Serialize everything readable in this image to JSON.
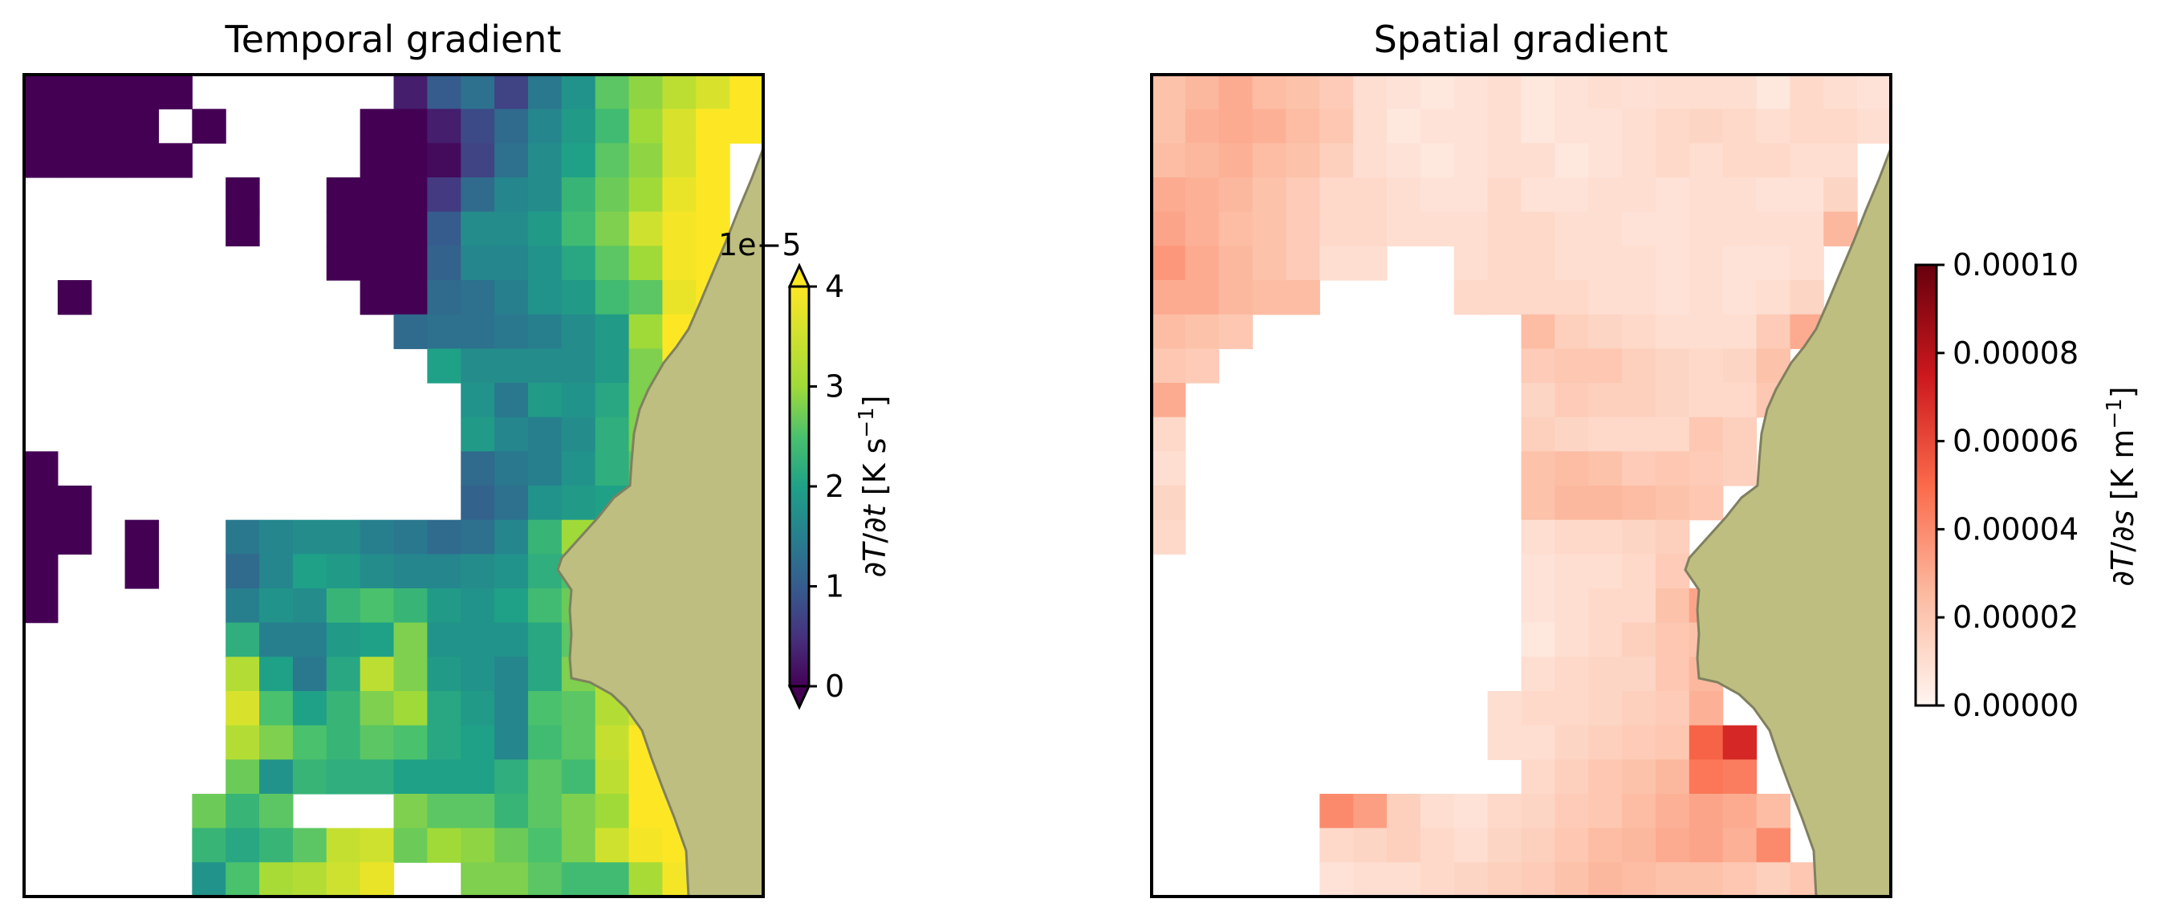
{
  "chart_data": [
    {
      "type": "heatmap",
      "title": "Temporal gradient",
      "colormap": "viridis",
      "colorbar": {
        "label_parts": [
          "∂",
          "T",
          "/∂",
          "t",
          " [K s",
          "−1",
          "]"
        ],
        "ticks": [
          "0",
          "1",
          "2",
          "3",
          "4"
        ],
        "tick_values": [
          0,
          1,
          2,
          3,
          4
        ],
        "offset_text": "1e−5",
        "range": [
          0,
          4
        ],
        "extend": "both"
      },
      "grid_note": "22 columns x 24 rows; values in units of 1e-5 K/s, null = no data",
      "values": [
        [
          0,
          0,
          0,
          0,
          0,
          null,
          null,
          null,
          null,
          null,
          null,
          0.3,
          1,
          1.3,
          0.7,
          1.4,
          1.8,
          2.6,
          2.9,
          3.3,
          3.6,
          4.1
        ],
        [
          0,
          0,
          0,
          0,
          null,
          0,
          null,
          null,
          null,
          null,
          0,
          0,
          0.3,
          0.8,
          1.2,
          1.6,
          1.9,
          2.4,
          3.0,
          3.6,
          4.2,
          4.2
        ],
        [
          0,
          0,
          0,
          0,
          0,
          null,
          null,
          null,
          null,
          null,
          0,
          0,
          0.1,
          0.7,
          1.3,
          1.7,
          2.0,
          2.6,
          2.9,
          3.6,
          4.1,
          null
        ],
        [
          null,
          null,
          null,
          null,
          null,
          null,
          0,
          null,
          null,
          0,
          0,
          0,
          0.6,
          1.2,
          1.6,
          1.7,
          2.3,
          2.7,
          3.0,
          3.8,
          4.2,
          null
        ],
        [
          null,
          null,
          null,
          null,
          null,
          null,
          0,
          null,
          null,
          0,
          0,
          0,
          1,
          1.7,
          1.7,
          1.9,
          2.4,
          2.8,
          3.5,
          3.9,
          4.1,
          null
        ],
        [
          null,
          null,
          null,
          null,
          null,
          null,
          null,
          null,
          null,
          0,
          0,
          0,
          1.1,
          1.6,
          1.6,
          1.8,
          2.1,
          2.6,
          3.0,
          3.9,
          4.3,
          null
        ],
        [
          null,
          0,
          null,
          null,
          null,
          null,
          null,
          null,
          null,
          null,
          0,
          0,
          1.2,
          1.3,
          1.5,
          1.8,
          1.9,
          2.4,
          2.6,
          3.8,
          4.2,
          null
        ],
        [
          null,
          null,
          null,
          null,
          null,
          null,
          null,
          null,
          null,
          null,
          null,
          1.2,
          1.3,
          1.3,
          1.4,
          1.5,
          1.7,
          1.9,
          3.0,
          4.1,
          4.2,
          null
        ],
        [
          null,
          null,
          null,
          null,
          null,
          null,
          null,
          null,
          null,
          null,
          null,
          null,
          2.0,
          1.7,
          1.7,
          1.7,
          1.7,
          1.9,
          2.8,
          4.2,
          4.2,
          null
        ],
        [
          null,
          null,
          null,
          null,
          null,
          null,
          null,
          null,
          null,
          null,
          null,
          null,
          null,
          1.8,
          1.4,
          1.9,
          1.8,
          2.1,
          2.8,
          4.2,
          null,
          null
        ],
        [
          null,
          null,
          null,
          null,
          null,
          null,
          null,
          null,
          null,
          null,
          null,
          null,
          null,
          1.9,
          1.6,
          1.5,
          1.7,
          2.2,
          2.8,
          2.7,
          null,
          null
        ],
        [
          0,
          null,
          null,
          null,
          null,
          null,
          null,
          null,
          null,
          null,
          null,
          null,
          null,
          1.2,
          1.4,
          1.5,
          1.8,
          2.2,
          2.6,
          2.1,
          null,
          null
        ],
        [
          0,
          0,
          null,
          null,
          null,
          null,
          null,
          null,
          null,
          null,
          null,
          null,
          null,
          1.1,
          1.3,
          1.8,
          1.9,
          2.0,
          2.4,
          null,
          null,
          null
        ],
        [
          0,
          0,
          null,
          0,
          null,
          null,
          1.4,
          1.6,
          1.7,
          1.7,
          1.5,
          1.4,
          1.2,
          1.3,
          1.6,
          2.3,
          3.0,
          3.5,
          3.8,
          null,
          null,
          null
        ],
        [
          0,
          null,
          null,
          0,
          null,
          null,
          1.2,
          1.6,
          2.0,
          1.9,
          1.7,
          1.6,
          1.6,
          1.7,
          1.8,
          2.2,
          2.5,
          2.6,
          3.0,
          null,
          null,
          null
        ],
        [
          0,
          null,
          null,
          null,
          null,
          null,
          1.5,
          1.8,
          1.7,
          2.3,
          2.5,
          2.3,
          1.9,
          1.8,
          2.0,
          2.4,
          2.7,
          3.5,
          null,
          null,
          null,
          null
        ],
        [
          null,
          null,
          null,
          null,
          null,
          null,
          2.2,
          1.5,
          1.5,
          1.9,
          2.0,
          2.8,
          1.8,
          1.8,
          1.8,
          2.1,
          2.6,
          3.9,
          null,
          null,
          null,
          null
        ],
        [
          null,
          null,
          null,
          null,
          null,
          null,
          3.2,
          2.0,
          1.4,
          2.1,
          3.3,
          2.8,
          1.9,
          1.8,
          1.6,
          2.1,
          2.8,
          3.2,
          null,
          null,
          null,
          null
        ],
        [
          null,
          null,
          null,
          null,
          null,
          null,
          3.6,
          2.5,
          2.0,
          2.3,
          2.8,
          3.0,
          2.1,
          1.9,
          1.6,
          2.5,
          2.6,
          3.2,
          3.6,
          null,
          null,
          null
        ],
        [
          null,
          null,
          null,
          null,
          null,
          null,
          3.2,
          2.8,
          2.5,
          2.3,
          2.6,
          2.5,
          2.1,
          2.0,
          1.6,
          2.4,
          2.6,
          3.4,
          4.2,
          4.0,
          null,
          null
        ],
        [
          null,
          null,
          null,
          null,
          null,
          null,
          2.7,
          1.8,
          2.3,
          2.2,
          2.2,
          2.0,
          2.0,
          2.0,
          2.2,
          2.6,
          2.4,
          3.3,
          4.0,
          4.0,
          null,
          null
        ],
        [
          null,
          null,
          null,
          null,
          null,
          2.7,
          2.3,
          2.6,
          null,
          null,
          null,
          2.8,
          2.6,
          2.6,
          2.3,
          2.6,
          2.8,
          3.0,
          4.1,
          4.2,
          null,
          null
        ],
        [
          null,
          null,
          null,
          null,
          null,
          2.3,
          2.1,
          2.3,
          2.6,
          3.4,
          3.5,
          2.7,
          3.0,
          2.9,
          2.7,
          2.5,
          2.8,
          3.5,
          3.9,
          4.2,
          null,
          null
        ],
        [
          null,
          null,
          null,
          null,
          null,
          1.8,
          2.5,
          3.1,
          3.2,
          3.5,
          3.8,
          null,
          null,
          2.8,
          2.8,
          2.6,
          2.4,
          2.4,
          3.1,
          3.9,
          4.2,
          null
        ]
      ]
    },
    {
      "type": "heatmap",
      "title": "Spatial gradient",
      "colormap": "Reds",
      "colorbar": {
        "label_parts": [
          "∂",
          "T",
          "/∂",
          "s",
          " [K m",
          "−1",
          "]"
        ],
        "ticks": [
          "0.00000",
          "0.00002",
          "0.00004",
          "0.00006",
          "0.00008",
          "0.00010"
        ],
        "tick_values": [
          0,
          2e-05,
          4e-05,
          6e-05,
          8e-05,
          0.0001
        ],
        "range": [
          0,
          0.0001
        ],
        "extend": "neither"
      },
      "grid_note": "22 columns x 24 rows; values in K/m, null = no data",
      "values": [
        [
          2.2e-05,
          2.6e-05,
          3e-05,
          2.4e-05,
          2.2e-05,
          1.8e-05,
          1e-05,
          8e-06,
          6e-06,
          8e-06,
          1e-05,
          6e-06,
          8e-06,
          1e-05,
          9e-06,
          1e-05,
          1e-05,
          1e-05,
          6e-06,
          1.2e-05,
          1e-05,
          8e-06
        ],
        [
          2.2e-05,
          2.8e-05,
          3e-05,
          2.8e-05,
          2.4e-05,
          2e-05,
          1e-05,
          6e-06,
          8e-06,
          8e-06,
          1e-05,
          6e-06,
          8e-06,
          8e-06,
          1e-05,
          1.2e-05,
          1.4e-05,
          1.2e-05,
          1e-05,
          1.2e-05,
          1.2e-05,
          1e-05
        ],
        [
          2.4e-05,
          2.6e-05,
          2.8e-05,
          2.4e-05,
          2.2e-05,
          1.6e-05,
          1e-05,
          8e-06,
          6e-06,
          8e-06,
          1e-05,
          1e-05,
          6e-06,
          8e-06,
          1e-05,
          1.2e-05,
          1e-05,
          1.2e-05,
          1.2e-05,
          1e-05,
          1e-05,
          null
        ],
        [
          3e-05,
          2.8e-05,
          2.6e-05,
          2.2e-05,
          1.8e-05,
          1.2e-05,
          1.2e-05,
          1e-05,
          8e-06,
          8e-06,
          1.2e-05,
          8e-06,
          8e-06,
          1e-05,
          1e-05,
          8e-06,
          1e-05,
          1e-05,
          8e-06,
          8e-06,
          1.4e-05,
          null
        ],
        [
          3.2e-05,
          2.8e-05,
          2.4e-05,
          2.2e-05,
          1.8e-05,
          1.2e-05,
          1.2e-05,
          1e-05,
          1e-05,
          1e-05,
          1.2e-05,
          1.2e-05,
          1e-05,
          1e-05,
          8e-06,
          8e-06,
          1e-05,
          1e-05,
          1e-05,
          1e-05,
          2.6e-05,
          null
        ],
        [
          3.6e-05,
          3e-05,
          2.6e-05,
          2.2e-05,
          1.8e-05,
          1e-05,
          1e-05,
          null,
          null,
          1e-05,
          1.2e-05,
          1.2e-05,
          1e-05,
          1e-05,
          1e-05,
          8e-06,
          1e-05,
          8e-06,
          8e-06,
          1e-05,
          null,
          null
        ],
        [
          3e-05,
          3e-05,
          2.6e-05,
          2.4e-05,
          2.4e-05,
          null,
          null,
          null,
          null,
          1.2e-05,
          1.2e-05,
          1.2e-05,
          1.2e-05,
          1e-05,
          1e-05,
          8e-06,
          1e-05,
          8e-06,
          1e-05,
          1.4e-05,
          null,
          null
        ],
        [
          2.4e-05,
          2.2e-05,
          2e-05,
          null,
          null,
          null,
          null,
          null,
          null,
          null,
          null,
          2.4e-05,
          1.6e-05,
          1.4e-05,
          1.2e-05,
          1e-05,
          1e-05,
          1e-05,
          1.8e-05,
          3e-05,
          null,
          null
        ],
        [
          2e-05,
          1.8e-05,
          null,
          null,
          null,
          null,
          null,
          null,
          null,
          null,
          null,
          1.8e-05,
          2e-05,
          2e-05,
          1.6e-05,
          1.4e-05,
          1.2e-05,
          1.4e-05,
          2.2e-05,
          null,
          null,
          null
        ],
        [
          3e-05,
          null,
          null,
          null,
          null,
          null,
          null,
          null,
          null,
          null,
          null,
          1.4e-05,
          1.8e-05,
          1.6e-05,
          1.6e-05,
          1.4e-05,
          1.2e-05,
          1.2e-05,
          2e-05,
          null,
          null,
          null
        ],
        [
          1.2e-05,
          null,
          null,
          null,
          null,
          null,
          null,
          null,
          null,
          null,
          null,
          1.6e-05,
          1.4e-05,
          1.2e-05,
          1.2e-05,
          1.2e-05,
          2e-05,
          1.6e-05,
          null,
          null,
          null,
          null
        ],
        [
          1e-05,
          null,
          null,
          null,
          null,
          null,
          null,
          null,
          null,
          null,
          null,
          2.2e-05,
          2.4e-05,
          2.2e-05,
          1.8e-05,
          2e-05,
          1.8e-05,
          1.6e-05,
          null,
          null,
          null,
          null
        ],
        [
          1.4e-05,
          null,
          null,
          null,
          null,
          null,
          null,
          null,
          null,
          null,
          null,
          2.2e-05,
          2.6e-05,
          2.6e-05,
          2.4e-05,
          2.2e-05,
          2e-05,
          null,
          null,
          null,
          null,
          null
        ],
        [
          1.2e-05,
          null,
          null,
          null,
          null,
          null,
          null,
          null,
          null,
          null,
          null,
          1e-05,
          1.2e-05,
          1.2e-05,
          1.4e-05,
          1.6e-05,
          null,
          null,
          null,
          null,
          null,
          null
        ],
        [
          null,
          null,
          null,
          null,
          null,
          null,
          null,
          null,
          null,
          null,
          null,
          8e-06,
          1e-05,
          1e-05,
          1.2e-05,
          1.8e-05,
          null,
          null,
          null,
          null,
          null,
          null
        ],
        [
          null,
          null,
          null,
          null,
          null,
          null,
          null,
          null,
          null,
          null,
          null,
          8e-06,
          1e-05,
          1.2e-05,
          1.2e-05,
          2.2e-05,
          3.2e-05,
          null,
          null,
          null,
          null,
          null
        ],
        [
          null,
          null,
          null,
          null,
          null,
          null,
          null,
          null,
          null,
          null,
          null,
          6e-06,
          1e-05,
          1.2e-05,
          1.6e-05,
          2e-05,
          2.2e-05,
          null,
          null,
          null,
          null,
          null
        ],
        [
          null,
          null,
          null,
          null,
          null,
          null,
          null,
          null,
          null,
          null,
          null,
          1e-05,
          1.2e-05,
          1.4e-05,
          1.4e-05,
          2e-05,
          2.6e-05,
          null,
          null,
          null,
          null,
          null
        ],
        [
          null,
          null,
          null,
          null,
          null,
          null,
          null,
          null,
          null,
          null,
          1e-05,
          1.2e-05,
          1.2e-05,
          1.4e-05,
          1.6e-05,
          1.8e-05,
          2.8e-05,
          null,
          null,
          null,
          null,
          null
        ],
        [
          null,
          null,
          null,
          null,
          null,
          null,
          null,
          null,
          null,
          null,
          1e-05,
          1e-05,
          1.4e-05,
          1.6e-05,
          1.8e-05,
          2e-05,
          5.2e-05,
          7e-05,
          null,
          null,
          null,
          null
        ],
        [
          null,
          null,
          null,
          null,
          null,
          null,
          null,
          null,
          null,
          null,
          null,
          1.2e-05,
          1.6e-05,
          2e-05,
          2.2e-05,
          2.6e-05,
          4.6e-05,
          4.4e-05,
          null,
          null,
          null,
          null
        ],
        [
          null,
          null,
          null,
          null,
          null,
          4e-05,
          3.4e-05,
          1.6e-05,
          1e-05,
          8e-06,
          1.2e-05,
          1.4e-05,
          1.8e-05,
          2e-05,
          2.4e-05,
          2.8e-05,
          3.2e-05,
          3e-05,
          2.4e-05,
          null,
          null,
          null
        ],
        [
          null,
          null,
          null,
          null,
          null,
          1.2e-05,
          1.4e-05,
          1.6e-05,
          1.2e-05,
          1e-05,
          1.4e-05,
          1.6e-05,
          2e-05,
          2.4e-05,
          2.6e-05,
          3e-05,
          3.2e-05,
          2.8e-05,
          4e-05,
          null,
          null,
          null
        ],
        [
          null,
          null,
          null,
          null,
          null,
          8e-06,
          1e-05,
          1e-05,
          1.2e-05,
          1.4e-05,
          1.6e-05,
          1.8e-05,
          2.2e-05,
          2.6e-05,
          2.4e-05,
          2.2e-05,
          2.2e-05,
          2e-05,
          1.6e-05,
          2e-05,
          null,
          null
        ]
      ]
    }
  ]
}
